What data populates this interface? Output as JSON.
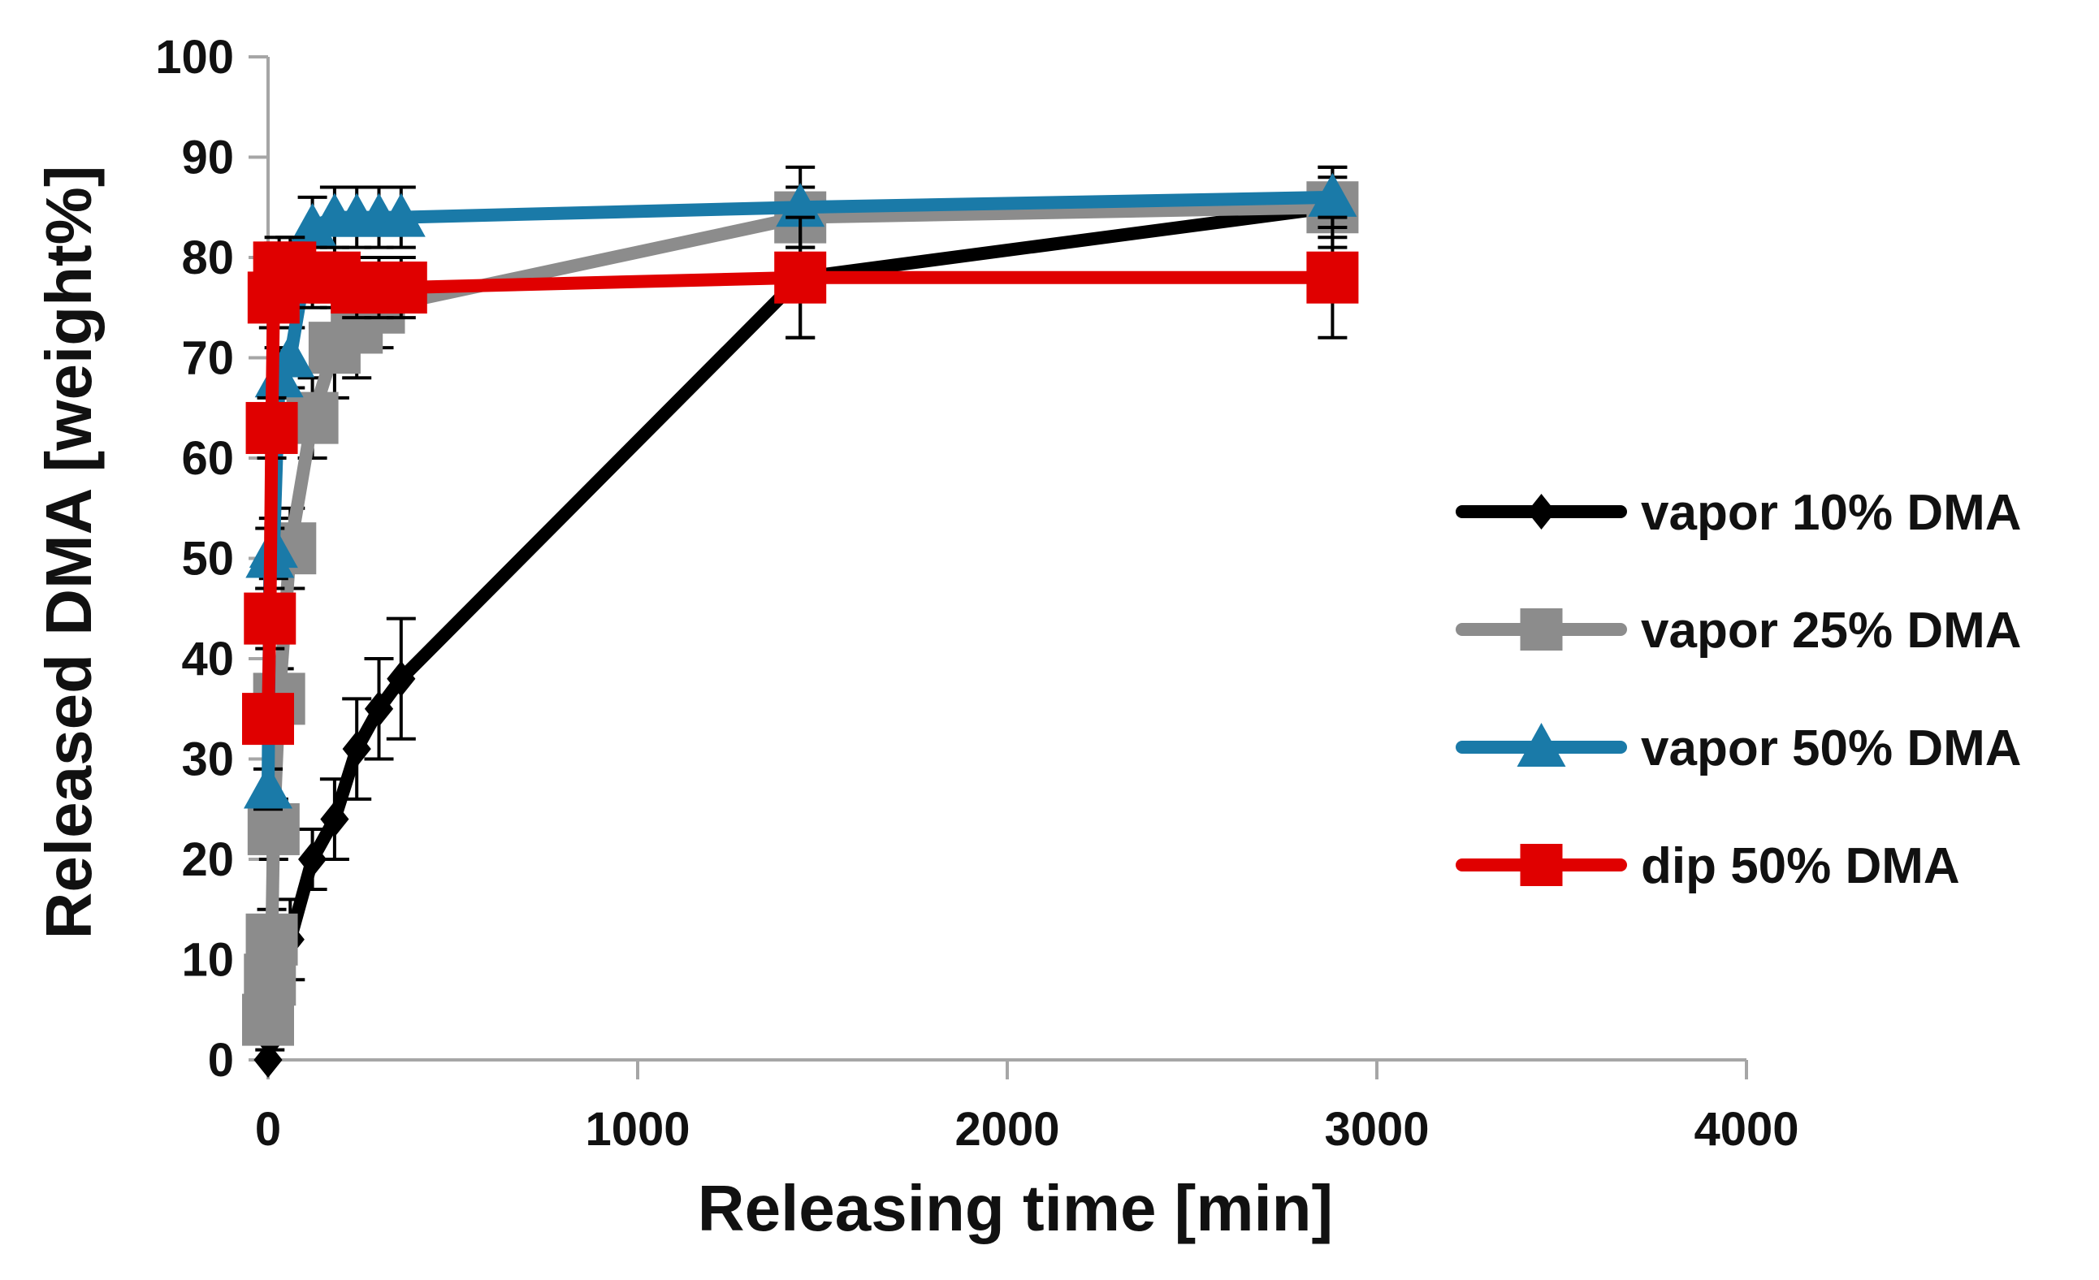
{
  "chart_data": {
    "type": "line",
    "title": "",
    "xlabel": "Releasing time [min]",
    "ylabel": "Released DMA [weight%]",
    "xlim": [
      0,
      4000
    ],
    "ylim": [
      0,
      100
    ],
    "xticks": [
      0,
      1000,
      2000,
      3000,
      4000
    ],
    "yticks": [
      0,
      10,
      20,
      30,
      40,
      50,
      60,
      70,
      80,
      90,
      100
    ],
    "grid": false,
    "legend_position": "right",
    "series": [
      {
        "name": "vapor 10% DMA",
        "color": "#000000",
        "marker": "diamond",
        "x": [
          0,
          5,
          15,
          30,
          60,
          120,
          180,
          240,
          300,
          360,
          1440,
          2880
        ],
        "y": [
          0,
          2,
          4,
          7,
          12,
          20,
          24,
          31,
          35,
          38,
          78,
          85
        ],
        "err": [
          0,
          1,
          2,
          3,
          4,
          3,
          4,
          5,
          5,
          6,
          6,
          4
        ]
      },
      {
        "name": "vapor 25% DMA",
        "color": "#8c8c8c",
        "marker": "square",
        "x": [
          0,
          5,
          10,
          15,
          30,
          60,
          120,
          180,
          240,
          300,
          1440,
          2880
        ],
        "y": [
          4,
          8,
          12,
          23,
          36,
          51,
          64,
          71,
          73,
          75,
          84,
          85
        ],
        "err": [
          1,
          2,
          3,
          3,
          3,
          4,
          4,
          5,
          5,
          4,
          3,
          3
        ]
      },
      {
        "name": "vapor 50% DMA",
        "color": "#1a7aa8",
        "marker": "triangle",
        "x": [
          0,
          5,
          15,
          30,
          60,
          120,
          180,
          240,
          300,
          360,
          1440,
          2880
        ],
        "y": [
          27,
          50,
          51,
          68,
          70,
          83,
          84,
          84,
          84,
          84,
          85,
          86
        ],
        "err": [
          2,
          3,
          3,
          3,
          3,
          3,
          3,
          3,
          3,
          3,
          4,
          3
        ]
      },
      {
        "name": "dip 50% DMA",
        "color": "#e00000",
        "marker": "square",
        "x": [
          0,
          5,
          10,
          15,
          30,
          60,
          120,
          180,
          240,
          300,
          360,
          1440,
          2880
        ],
        "y": [
          34,
          44,
          63,
          76,
          79,
          79,
          78,
          78,
          77,
          77,
          77,
          78,
          78
        ],
        "err": [
          2,
          3,
          3,
          3,
          3,
          3,
          3,
          3,
          3,
          3,
          3,
          6,
          6
        ]
      }
    ]
  }
}
